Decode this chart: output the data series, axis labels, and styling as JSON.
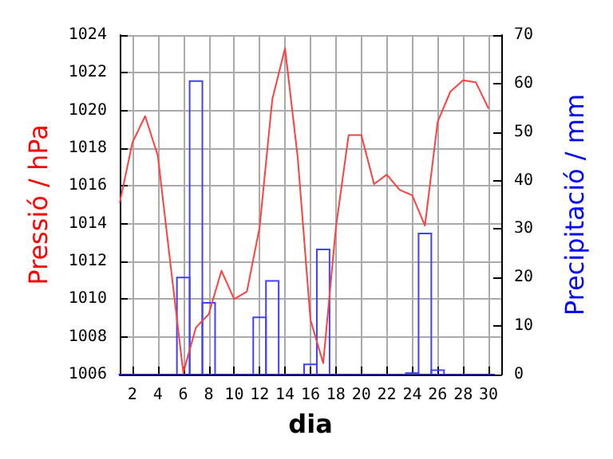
{
  "chart_data": {
    "type": "line",
    "xlabel": "dia",
    "ylabel": "Pressió / hPa",
    "y2label": "Precipitació / mm",
    "x": [
      1,
      2,
      3,
      4,
      5,
      6,
      7,
      8,
      9,
      10,
      11,
      12,
      13,
      14,
      15,
      16,
      17,
      18,
      19,
      20,
      21,
      22,
      23,
      24,
      25,
      26,
      27,
      28,
      29,
      30
    ],
    "series": [
      {
        "color": "#ff4040",
        "values": [
          1015.1,
          1018.3,
          1019.7,
          1017.6,
          1011.8,
          1006.1,
          1008.5,
          1009.2,
          1011.5,
          1010.0,
          1010.4,
          1013.8,
          1020.6,
          1023.3,
          1017.5,
          1008.9,
          1006.6,
          1013.8,
          1018.7,
          1018.7,
          1016.1,
          1016.6,
          1015.8,
          1015.5,
          1013.9,
          1019.4,
          1021.0,
          1021.6,
          1021.5,
          1020.1
        ]
      },
      {
        "type": "bar",
        "axis": "y2",
        "color": "#4040ff",
        "values": [
          0,
          0,
          0,
          0,
          0,
          20,
          60.5,
          14.8,
          0,
          0,
          0,
          11.8,
          19.3,
          0,
          0,
          2.1,
          25.8,
          0,
          0,
          0,
          0,
          0,
          0,
          0.3,
          29.1,
          0.9,
          0,
          0,
          0,
          0
        ]
      }
    ],
    "xlim": [
      1,
      31
    ],
    "xticks": [
      2,
      4,
      6,
      8,
      10,
      12,
      14,
      16,
      18,
      20,
      22,
      24,
      26,
      28,
      30
    ],
    "ylim": [
      1006,
      1024
    ],
    "yticks": [
      1006,
      1008,
      1010,
      1012,
      1014,
      1016,
      1018,
      1020,
      1022,
      1024
    ],
    "y2lim": [
      0,
      70
    ],
    "y2ticks": [
      0,
      10,
      20,
      30,
      40,
      50,
      60,
      70
    ],
    "grid": true,
    "marker": "none",
    "line_style": "solid"
  }
}
